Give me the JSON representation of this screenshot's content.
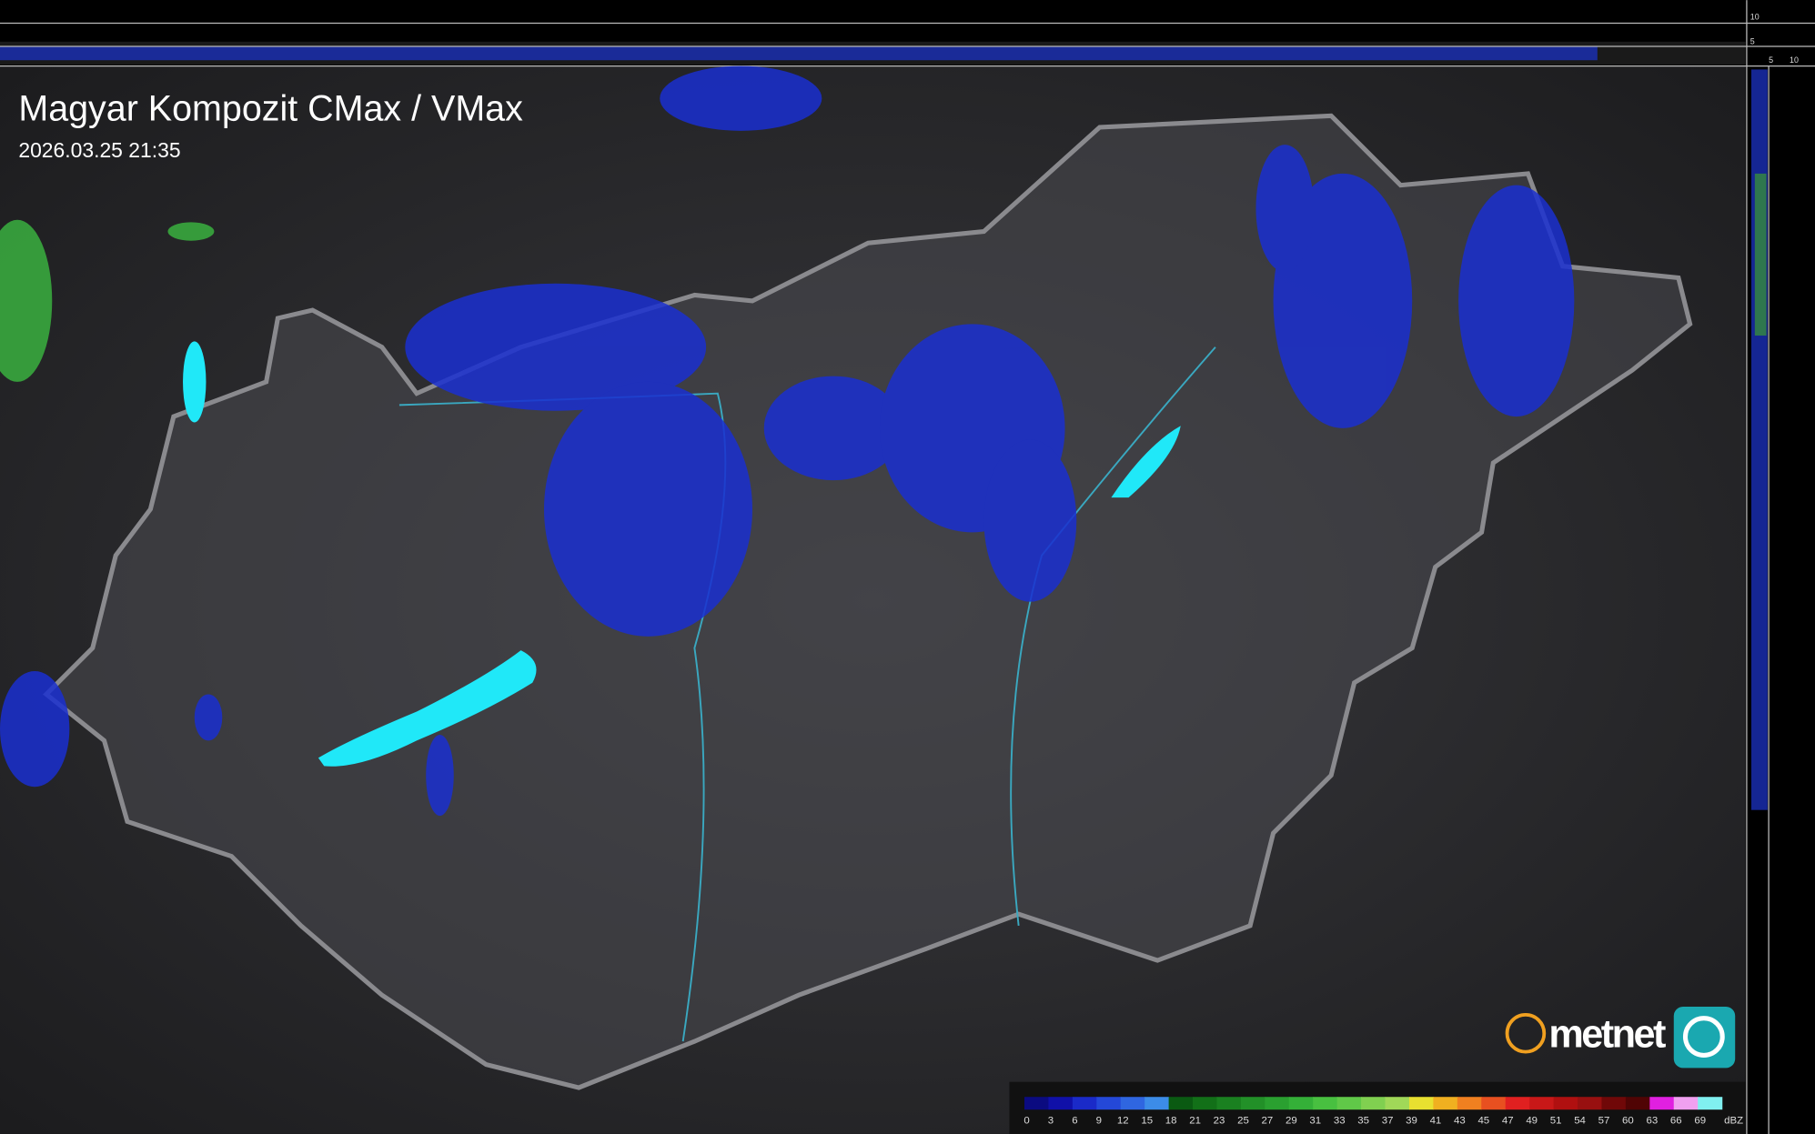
{
  "header": {
    "title": "Magyar Kompozit CMax / VMax",
    "timestamp": "2026.03.25 21:35"
  },
  "side_panels": {
    "top_ticks": [
      "10",
      "5"
    ],
    "right_ticks": [
      "5",
      "10"
    ]
  },
  "logo": {
    "text": "metnet"
  },
  "legend": {
    "unit": "dBZ",
    "ticks": [
      "0",
      "3",
      "6",
      "9",
      "12",
      "15",
      "18",
      "21",
      "23",
      "25",
      "27",
      "29",
      "31",
      "33",
      "35",
      "37",
      "39",
      "41",
      "43",
      "45",
      "47",
      "49",
      "51",
      "54",
      "57",
      "60",
      "63",
      "66",
      "69"
    ],
    "colors": [
      "#0b0b80",
      "#1010a8",
      "#1a2ac8",
      "#2448d8",
      "#2f66e0",
      "#3c8ce8",
      "#0a5a12",
      "#127018",
      "#1a8020",
      "#229028",
      "#2aa030",
      "#34b038",
      "#48c040",
      "#60c848",
      "#80d050",
      "#a0d858",
      "#e8e030",
      "#f0b020",
      "#f08020",
      "#e85020",
      "#e02020",
      "#c81818",
      "#b01010",
      "#981010",
      "#700808",
      "#500404",
      "#e020e0",
      "#f0a0f0",
      "#80f0f0"
    ]
  }
}
